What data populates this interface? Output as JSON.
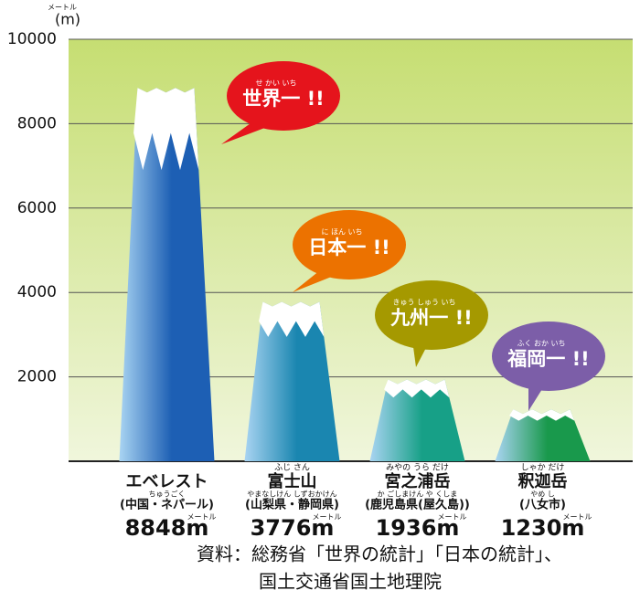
{
  "chart_data": {
    "type": "bar",
    "y_unit": "(m)",
    "y_unit_ruby": "メートル",
    "categories": [
      "エベレスト",
      "富士山",
      "宮之浦岳",
      "釈迦岳"
    ],
    "category_ruby": [
      null,
      "ふじ さん",
      "みやの うら だけ",
      "しゃか だけ"
    ],
    "regions": [
      "(中国・ネパール)",
      "(山梨県・静岡県)",
      "(鹿児島県(屋久島))",
      "(八女市)"
    ],
    "region_ruby": [
      "ちゅうごく",
      "やまなしけん しずおかけん",
      "か ごしまけん や くしま",
      "やめ し"
    ],
    "values": [
      8848,
      3776,
      1936,
      1230
    ],
    "value_labels": [
      "8848m",
      "3776m",
      "1936m",
      "1230m"
    ],
    "value_label_ruby": "メートル",
    "colors": [
      "#1d5fb4",
      "#1a86b0",
      "#17a087",
      "#19994c"
    ],
    "annotations": [
      {
        "text": "世界一 !!",
        "ruby": "せ かい いち",
        "color": "#e5141c"
      },
      {
        "text": "日本一 !!",
        "ruby": "に ほん いち",
        "color": "#ec7200"
      },
      {
        "text": "九州一 !!",
        "ruby": "きゅう しゅう いち",
        "color": "#a59900"
      },
      {
        "text": "福岡一 !!",
        "ruby": "ふく おか いち",
        "color": "#7c5ea8"
      }
    ],
    "ylim": [
      0,
      10000
    ],
    "yticks": [
      2000,
      4000,
      6000,
      8000,
      10000
    ],
    "grid": true,
    "source": [
      "資料：総務省「世界の統計」「日本の統計」、",
      "国土交通省国土地理院"
    ]
  }
}
